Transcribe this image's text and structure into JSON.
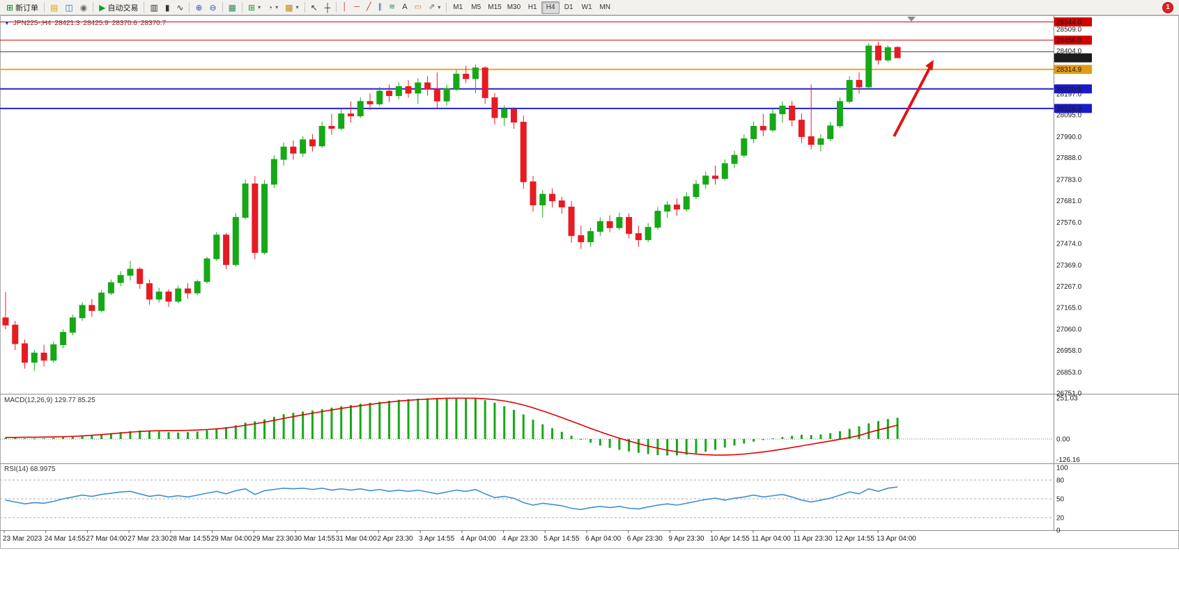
{
  "toolbar": {
    "new_order_label": "新订单",
    "autotrading_label": "自动交易",
    "timeframes": [
      "M1",
      "M5",
      "M15",
      "M30",
      "H1",
      "H4",
      "D1",
      "W1",
      "MN"
    ],
    "active_timeframe": "H4",
    "notifications_count": "1"
  },
  "icons": {
    "new_order": "⊞",
    "new_chart": "▤",
    "profiles": "◫",
    "navigator": "◉",
    "autotrading_play": "▶",
    "chart_bars": "▥",
    "chart_candles": "▮",
    "chart_line": "∿",
    "zoom_in": "⊕",
    "zoom_out": "⊖",
    "tile_windows": "▦",
    "indicators_add": "⊞",
    "period": "◔",
    "template": "▩",
    "cursor": "↖",
    "crosshair": "┼",
    "vertical_line": "│",
    "horizontal_line": "─",
    "trendline": "╱",
    "channel": "∥",
    "fibonacci": "≋",
    "text": "A",
    "label": "▭",
    "shapes": "⇗",
    "dropdown": "▾",
    "shift_marker": "▼"
  },
  "chart_title": {
    "symbol_period": "JPN225-,H4",
    "open": "28421.3",
    "high": "28425.9",
    "low": "28370.6",
    "close": "28370.7"
  },
  "chart_data": [
    {
      "type": "candlestick",
      "symbol": "JPN225-",
      "timeframe": "H4",
      "ohlc_current": {
        "open": 28421.3,
        "high": 28425.9,
        "low": 28370.6,
        "close": 28370.7
      },
      "y_range": [
        26748,
        28576
      ],
      "colors": {
        "up": "#17a817",
        "down": "#e51c23"
      },
      "levels": [
        {
          "price": 28544.0,
          "color": "#d40000",
          "width": 1
        },
        {
          "price": 28456.0,
          "color": "#d40000",
          "width": 1
        },
        {
          "price": 28400.0,
          "color": "#3c3c3c",
          "width": 1
        },
        {
          "price": 28314.9,
          "color": "#eda41a",
          "width": 2
        },
        {
          "price": 28220.5,
          "color": "#2222cc",
          "width": 2
        },
        {
          "price": 28126.3,
          "color": "#2222cc",
          "width": 2
        }
      ],
      "price_axis": {
        "ticks": [
          "28509.0",
          "28404.0",
          "28197.0",
          "28095.0",
          "27990.0",
          "27888.0",
          "27783.0",
          "27681.0",
          "27576.0",
          "27474.0",
          "27369.0",
          "27267.0",
          "27165.0",
          "27060.0",
          "26958.0",
          "26853.0",
          "26751.0"
        ],
        "badges": [
          {
            "value": "28544.0",
            "color": "#d40000"
          },
          {
            "value": "28456.0",
            "color": "#d40000"
          },
          {
            "value": "28370.7",
            "color": "#1c1c1c"
          },
          {
            "value": "28314.9",
            "color": "#e09c16"
          },
          {
            "value": "28220.5",
            "color": "#1a1ac9"
          },
          {
            "value": "28126.3",
            "color": "#1a1ac9"
          }
        ]
      },
      "time_axis": [
        "23 Mar 2023",
        "24 Mar 14:55",
        "27 Mar 04:00",
        "27 Mar 23:30",
        "28 Mar 14:55",
        "29 Mar 04:00",
        "29 Mar 23:30",
        "30 Mar 14:55",
        "31 Mar 04:00",
        "2 Apr 23:30",
        "3 Apr 14:55",
        "4 Apr 04:00",
        "4 Apr 23:30",
        "5 Apr 14:55",
        "6 Apr 04:00",
        "6 Apr 23:30",
        "9 Apr 23:30",
        "10 Apr 14:55",
        "11 Apr 04:00",
        "11 Apr 23:30",
        "12 Apr 14:55",
        "13 Apr 04:00"
      ],
      "candles": [
        [
          27115,
          27240,
          27060,
          27080
        ],
        [
          27080,
          27100,
          26960,
          26990
        ],
        [
          26990,
          27010,
          26870,
          26900
        ],
        [
          26900,
          26960,
          26858,
          26945
        ],
        [
          26945,
          26985,
          26880,
          26910
        ],
        [
          26910,
          27000,
          26898,
          26985
        ],
        [
          26985,
          27060,
          26968,
          27045
        ],
        [
          27045,
          27130,
          27030,
          27115
        ],
        [
          27115,
          27190,
          27100,
          27175
        ],
        [
          27175,
          27205,
          27120,
          27150
        ],
        [
          27150,
          27250,
          27140,
          27235
        ],
        [
          27235,
          27300,
          27225,
          27285
        ],
        [
          27285,
          27340,
          27268,
          27320
        ],
        [
          27320,
          27390,
          27295,
          27350
        ],
        [
          27350,
          27360,
          27255,
          27280
        ],
        [
          27280,
          27300,
          27178,
          27205
        ],
        [
          27205,
          27260,
          27188,
          27240
        ],
        [
          27240,
          27252,
          27168,
          27195
        ],
        [
          27195,
          27270,
          27185,
          27255
        ],
        [
          27255,
          27282,
          27208,
          27235
        ],
        [
          27235,
          27300,
          27225,
          27290
        ],
        [
          27290,
          27410,
          27280,
          27400
        ],
        [
          27400,
          27530,
          27390,
          27515
        ],
        [
          27515,
          27525,
          27350,
          27372
        ],
        [
          27372,
          27620,
          27362,
          27600
        ],
        [
          27600,
          27782,
          27590,
          27762
        ],
        [
          27762,
          27800,
          27398,
          27430
        ],
        [
          27430,
          27780,
          27420,
          27760
        ],
        [
          27760,
          27900,
          27742,
          27880
        ],
        [
          27880,
          27962,
          27850,
          27940
        ],
        [
          27940,
          27972,
          27878,
          27910
        ],
        [
          27910,
          27992,
          27892,
          27975
        ],
        [
          27975,
          28002,
          27918,
          27945
        ],
        [
          27945,
          28062,
          27935,
          28040
        ],
        [
          28040,
          28100,
          28000,
          28030
        ],
        [
          28030,
          28122,
          28020,
          28100
        ],
        [
          28100,
          28160,
          28058,
          28090
        ],
        [
          28090,
          28180,
          28080,
          28160
        ],
        [
          28160,
          28200,
          28118,
          28148
        ],
        [
          28148,
          28230,
          28140,
          28210
        ],
        [
          28210,
          28242,
          28158,
          28188
        ],
        [
          28188,
          28252,
          28170,
          28232
        ],
        [
          28232,
          28262,
          28178,
          28200
        ],
        [
          28200,
          28272,
          28148,
          28250
        ],
        [
          28250,
          28282,
          28188,
          28220
        ],
        [
          28220,
          28300,
          28128,
          28162
        ],
        [
          28162,
          28242,
          28140,
          28222
        ],
        [
          28222,
          28312,
          28210,
          28292
        ],
        [
          28292,
          28332,
          28248,
          28270
        ],
        [
          28270,
          28338,
          28200,
          28322
        ],
        [
          28322,
          28330,
          28148,
          28178
        ],
        [
          28178,
          28200,
          28048,
          28082
        ],
        [
          28082,
          28142,
          28040,
          28122
        ],
        [
          28122,
          28132,
          28028,
          28060
        ],
        [
          28060,
          28092,
          27738,
          27772
        ],
        [
          27772,
          27800,
          27628,
          27660
        ],
        [
          27660,
          27732,
          27600,
          27712
        ],
        [
          27712,
          27740,
          27648,
          27680
        ],
        [
          27680,
          27700,
          27618,
          27650
        ],
        [
          27650,
          27678,
          27478,
          27512
        ],
        [
          27512,
          27560,
          27448,
          27482
        ],
        [
          27482,
          27552,
          27458,
          27532
        ],
        [
          27532,
          27600,
          27510,
          27580
        ],
        [
          27580,
          27610,
          27528,
          27550
        ],
        [
          27550,
          27622,
          27538,
          27600
        ],
        [
          27600,
          27620,
          27498,
          27522
        ],
        [
          27522,
          27560,
          27458,
          27492
        ],
        [
          27492,
          27572,
          27480,
          27552
        ],
        [
          27552,
          27650,
          27540,
          27630
        ],
        [
          27630,
          27680,
          27598,
          27660
        ],
        [
          27660,
          27692,
          27608,
          27640
        ],
        [
          27640,
          27722,
          27628,
          27700
        ],
        [
          27700,
          27780,
          27688,
          27760
        ],
        [
          27760,
          27822,
          27738,
          27800
        ],
        [
          27800,
          27850,
          27758,
          27788
        ],
        [
          27788,
          27880,
          27778,
          27860
        ],
        [
          27860,
          27922,
          27838,
          27900
        ],
        [
          27900,
          28000,
          27888,
          27980
        ],
        [
          27980,
          28062,
          27958,
          28040
        ],
        [
          28040,
          28100,
          27992,
          28022
        ],
        [
          28022,
          28122,
          28012,
          28100
        ],
        [
          28100,
          28160,
          28058,
          28138
        ],
        [
          28138,
          28162,
          28040,
          28070
        ],
        [
          28070,
          28102,
          27958,
          27990
        ],
        [
          27990,
          28242,
          27928,
          27952
        ],
        [
          27952,
          28002,
          27918,
          27980
        ],
        [
          27980,
          28062,
          27968,
          28042
        ],
        [
          28042,
          28180,
          28032,
          28160
        ],
        [
          28160,
          28282,
          28150,
          28262
        ],
        [
          28262,
          28300,
          28198,
          28230
        ],
        [
          28230,
          28442,
          28222,
          28428
        ],
        [
          28428,
          28448,
          28338,
          28360
        ],
        [
          28360,
          28432,
          28350,
          28420
        ],
        [
          28421.3,
          28425.9,
          28370.6,
          28370.7
        ]
      ],
      "annotations": {
        "arrow": {
          "color": "#e31212",
          "direction": "up-right"
        }
      }
    },
    {
      "type": "macd",
      "label": "MACD(12,26,9) 129.77 85.25",
      "params": "12,26,9",
      "scale_labels": [
        "251.03",
        "0.00",
        "-126.16"
      ],
      "colors": {
        "histogram": "#17a817",
        "signal": "#e00000"
      },
      "values": {
        "histogram": [
          8,
          6,
          4,
          3,
          5,
          7,
          10,
          14,
          18,
          24,
          30,
          36,
          42,
          48,
          52,
          50,
          46,
          42,
          40,
          42,
          46,
          54,
          66,
          72,
          84,
          100,
          108,
          120,
          136,
          152,
          160,
          168,
          174,
          182,
          192,
          200,
          208,
          216,
          222,
          228,
          234,
          240,
          244,
          247,
          249,
          250,
          251,
          250,
          248,
          246,
          238,
          222,
          200,
          178,
          150,
          118,
          90,
          66,
          44,
          20,
          -2,
          -22,
          -40,
          -54,
          -66,
          -76,
          -84,
          -92,
          -98,
          -101,
          -100,
          -96,
          -88,
          -78,
          -66,
          -52,
          -40,
          -28,
          -16,
          -6,
          4,
          12,
          20,
          26,
          24,
          28,
          36,
          48,
          62,
          78,
          96,
          110,
          122,
          130
        ],
        "signal": [
          10,
          10,
          11,
          11,
          12,
          13,
          14,
          16,
          19,
          23,
          27,
          32,
          37,
          42,
          46,
          49,
          51,
          52,
          52,
          53,
          55,
          58,
          62,
          68,
          75,
          84,
          93,
          103,
          114,
          126,
          137,
          148,
          158,
          168,
          178,
          187,
          196,
          204,
          212,
          219,
          226,
          232,
          237,
          241,
          244,
          247,
          249,
          250,
          250,
          249,
          246,
          241,
          233,
          222,
          208,
          191,
          172,
          152,
          131,
          109,
          87,
          65,
          44,
          24,
          5,
          -12,
          -28,
          -43,
          -56,
          -68,
          -78,
          -86,
          -92,
          -96,
          -98,
          -98,
          -96,
          -92,
          -86,
          -79,
          -71,
          -62,
          -52,
          -42,
          -32,
          -22,
          -12,
          -2,
          9,
          21,
          40,
          55,
          70,
          85
        ]
      }
    },
    {
      "type": "rsi",
      "label": "RSI(14) 68.9975",
      "period": 14,
      "current": 68.9975,
      "color": "#3d8fd1",
      "level_lines": [
        80,
        50,
        20
      ],
      "scale_labels": [
        "100",
        "80",
        "50",
        "20",
        "0"
      ],
      "values": [
        48,
        45,
        42,
        44,
        43,
        46,
        50,
        53,
        56,
        54,
        57,
        59,
        61,
        62,
        58,
        54,
        56,
        53,
        55,
        53,
        56,
        59,
        62,
        58,
        63,
        66,
        57,
        63,
        65,
        67,
        66,
        67,
        65,
        67,
        64,
        66,
        64,
        66,
        63,
        65,
        62,
        64,
        62,
        64,
        61,
        58,
        61,
        64,
        62,
        65,
        58,
        52,
        54,
        51,
        44,
        40,
        43,
        41,
        39,
        35,
        33,
        36,
        38,
        36,
        38,
        35,
        34,
        37,
        40,
        42,
        40,
        43,
        46,
        49,
        51,
        48,
        51,
        53,
        56,
        53,
        55,
        57,
        53,
        48,
        45,
        48,
        51,
        56,
        61,
        58,
        66,
        62,
        67,
        69
      ]
    }
  ]
}
